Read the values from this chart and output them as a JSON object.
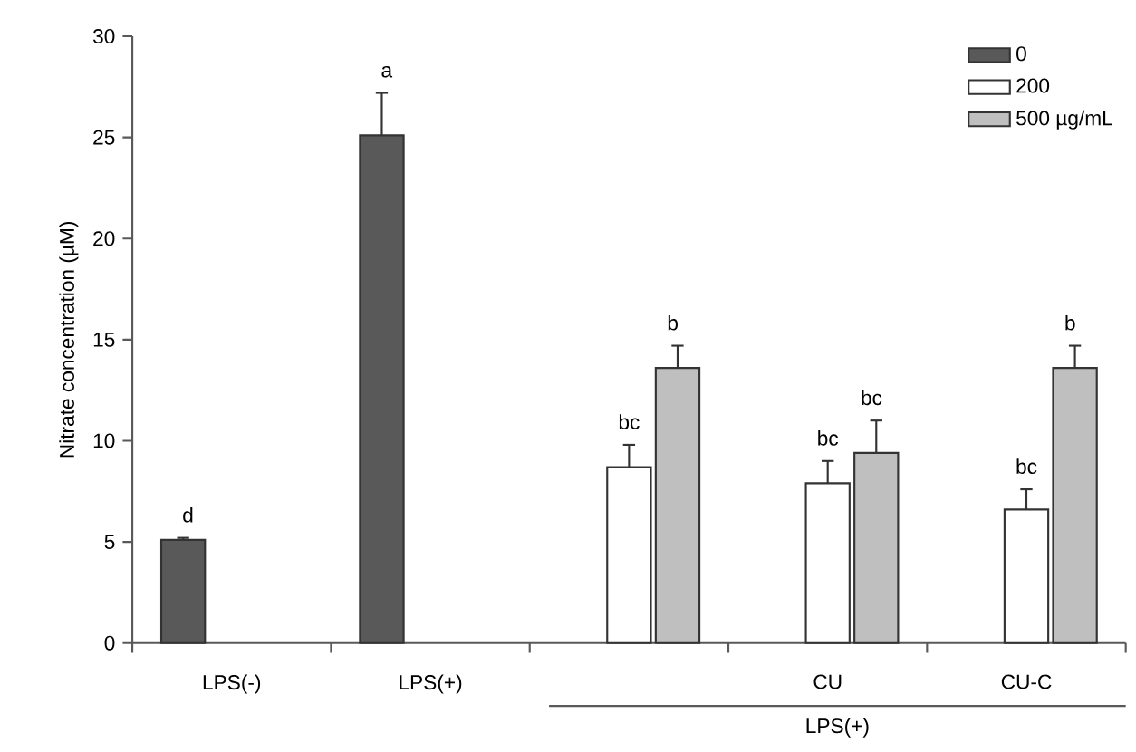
{
  "chart_data": {
    "type": "bar",
    "ylabel": "Nitrate concentration (µM)",
    "categories": [
      "LPS(-)",
      "LPS(+)",
      null,
      "CU",
      "CU-C"
    ],
    "series": [
      {
        "name": "0",
        "color": "#595959",
        "values": [
          5.1,
          25.1,
          null,
          null,
          null
        ],
        "errors": [
          0.1,
          2.1,
          null,
          null,
          null
        ],
        "value_labels": [
          "d",
          "a",
          null,
          null,
          null
        ]
      },
      {
        "name": "200",
        "color": "#ffffff",
        "values": [
          null,
          null,
          8.7,
          7.9,
          6.6
        ],
        "errors": [
          null,
          null,
          1.1,
          1.1,
          1.0
        ],
        "value_labels": [
          null,
          null,
          "bc",
          "bc",
          "bc"
        ]
      },
      {
        "name": "500 µg/mL",
        "color": "#bfbfbf",
        "values": [
          null,
          null,
          13.6,
          9.4,
          13.6
        ],
        "errors": [
          null,
          null,
          1.1,
          1.6,
          1.1
        ],
        "value_labels": [
          null,
          null,
          "b",
          "bc",
          "b"
        ]
      }
    ],
    "annotations": [
      "LPS(+)"
    ],
    "ylim": [
      0,
      30
    ],
    "yticks": [
      0,
      5,
      10,
      15,
      20,
      25,
      30
    ],
    "legend": "top right",
    "grid": false
  }
}
